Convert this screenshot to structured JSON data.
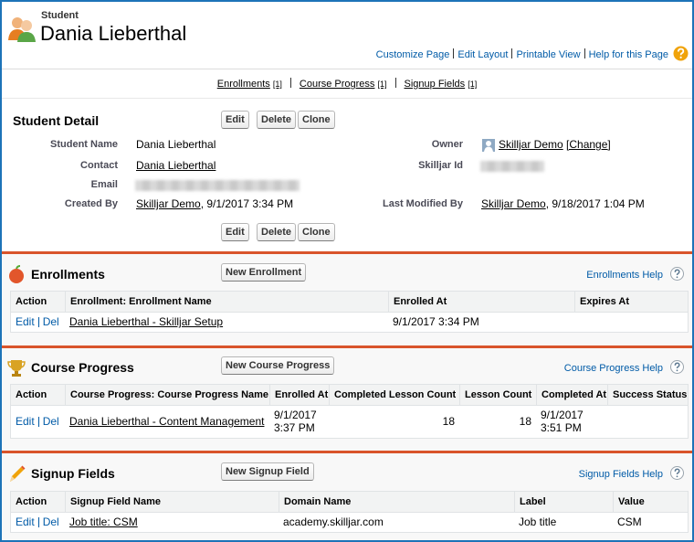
{
  "header": {
    "object_type": "Student",
    "title": "Dania Lieberthal",
    "links": [
      "Customize Page",
      "Edit Layout",
      "Printable View",
      "Help for this Page"
    ]
  },
  "related_links": [
    {
      "label": "Enrollments",
      "count": "[1]"
    },
    {
      "label": "Course Progress",
      "count": "[1]"
    },
    {
      "label": "Signup Fields",
      "count": "[1]"
    }
  ],
  "detail": {
    "title": "Student Detail",
    "buttons": [
      "Edit",
      "Delete",
      "Clone"
    ],
    "fields": {
      "student_name": {
        "label": "Student Name",
        "value": "Dania Lieberthal"
      },
      "owner": {
        "label": "Owner",
        "user": "Skilljar Demo",
        "action": "[Change]"
      },
      "contact": {
        "label": "Contact",
        "value": "Dania Lieberthal"
      },
      "skilljar_id": {
        "label": "Skilljar Id"
      },
      "email": {
        "label": "Email"
      },
      "created_by": {
        "label": "Created By",
        "user": "Skilljar Demo",
        "date": ", 9/1/2017 3:34 PM"
      },
      "last_modified_by": {
        "label": "Last Modified By",
        "user": "Skilljar Demo",
        "date": ", 9/18/2017 1:04 PM"
      }
    }
  },
  "sections": [
    {
      "title": "Enrollments",
      "button": "New Enrollment",
      "help": "Enrollments Help",
      "columns": [
        "Action",
        "Enrollment: Enrollment Name",
        "Enrolled At",
        "Expires At"
      ],
      "rows": [
        {
          "actions": [
            "Edit",
            "Del"
          ],
          "cells": [
            "Dania Lieberthal - Skilljar Setup",
            "9/1/2017 3:34 PM",
            null
          ]
        }
      ]
    },
    {
      "title": "Course Progress",
      "button": "New Course Progress",
      "help": "Course Progress Help",
      "columns": [
        "Action",
        "Course Progress: Course Progress Name",
        "Enrolled At",
        "Completed Lesson Count",
        "Lesson Count",
        "Completed At",
        "Success Status"
      ],
      "rows": [
        {
          "actions": [
            "Edit",
            "Del"
          ],
          "cells": [
            "Dania Lieberthal - Content Management",
            "9/1/2017 3:37 PM",
            18,
            18,
            "9/1/2017 3:51 PM",
            null
          ]
        }
      ]
    },
    {
      "title": "Signup Fields",
      "button": "New Signup Field",
      "help": "Signup Fields Help",
      "columns": [
        "Action",
        "Signup Field Name",
        "Domain Name",
        "Label",
        "Value"
      ],
      "rows": [
        {
          "actions": [
            "Edit",
            "Del"
          ],
          "cells": [
            "Job title: CSM",
            "academy.skilljar.com",
            "Job title",
            "CSM"
          ]
        }
      ]
    }
  ]
}
